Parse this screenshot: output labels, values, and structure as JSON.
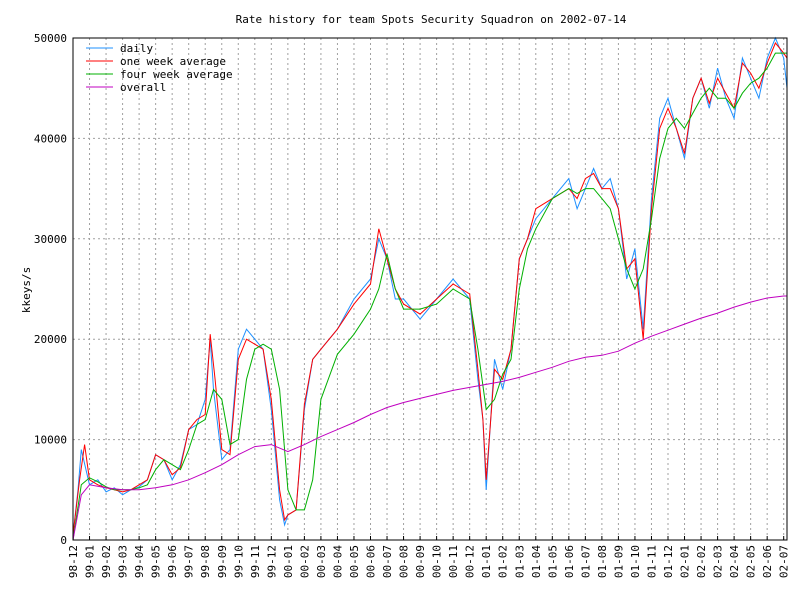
{
  "chart_data": {
    "type": "line",
    "title": "Rate history for team Spots Security Squadron on 2002-07-14",
    "xlabel": "",
    "ylabel": "kkeys/s",
    "ylim": [
      0,
      50000
    ],
    "xlim": [
      "1998-12",
      "2002-07"
    ],
    "yticks": [
      0,
      10000,
      20000,
      30000,
      40000,
      50000
    ],
    "xticks": [
      "98-12",
      "99-01",
      "99-02",
      "99-03",
      "99-04",
      "99-05",
      "99-06",
      "99-07",
      "99-08",
      "99-09",
      "99-10",
      "99-11",
      "99-12",
      "00-01",
      "00-02",
      "00-03",
      "00-04",
      "00-05",
      "00-06",
      "00-07",
      "00-08",
      "00-09",
      "00-10",
      "00-11",
      "00-12",
      "01-01",
      "01-02",
      "01-03",
      "01-04",
      "01-05",
      "01-06",
      "01-07",
      "01-08",
      "01-09",
      "01-10",
      "01-11",
      "01-12",
      "02-01",
      "02-02",
      "02-03",
      "02-04",
      "02-05",
      "02-06",
      "02-07"
    ],
    "grid": true,
    "legend_position": "top-left",
    "series": [
      {
        "name": "daily",
        "color": "#1e90ff",
        "month_index": [
          0,
          0.3,
          0.5,
          1,
          1.5,
          2,
          2.5,
          3,
          3.5,
          4,
          4.5,
          5,
          5.5,
          6,
          6.5,
          7,
          7.5,
          8,
          8.3,
          8.5,
          9,
          9.5,
          10,
          10.5,
          11,
          11.5,
          12,
          12.5,
          12.8,
          13,
          13.5,
          14,
          14.5,
          15,
          16,
          17,
          18,
          18.5,
          19,
          19.5,
          20,
          21,
          22,
          23,
          24,
          24.5,
          24.8,
          25,
          25.5,
          26,
          26.5,
          27,
          27.5,
          28,
          29,
          30,
          30.5,
          31,
          31.5,
          32,
          32.5,
          33,
          33.5,
          34,
          34.5,
          35,
          35.5,
          36,
          36.5,
          37,
          37.5,
          38,
          38.5,
          39,
          39.5,
          40,
          40.5,
          41,
          41.5,
          42,
          42.5,
          43,
          43.2
        ],
        "values": [
          500,
          5000,
          9000,
          5500,
          6000,
          4800,
          5200,
          4500,
          5000,
          5300,
          6000,
          8500,
          8000,
          6000,
          7500,
          11000,
          11500,
          14000,
          20000,
          15000,
          8000,
          9000,
          19000,
          21000,
          20000,
          19000,
          13000,
          4000,
          1500,
          2500,
          3000,
          13000,
          18000,
          19000,
          21000,
          24000,
          26000,
          30000,
          28000,
          24000,
          24000,
          22000,
          24000,
          26000,
          24000,
          16000,
          12000,
          5000,
          18000,
          15000,
          19000,
          28000,
          30000,
          32000,
          34000,
          36000,
          33000,
          35000,
          37000,
          35000,
          36000,
          33000,
          26000,
          29000,
          21000,
          34000,
          42000,
          44000,
          41000,
          38000,
          44000,
          46000,
          43000,
          47000,
          44000,
          42000,
          48000,
          46000,
          44000,
          48000,
          50000,
          48000,
          45000
        ]
      },
      {
        "name": "one week average",
        "color": "#ff0000",
        "month_index": [
          0,
          0.4,
          0.7,
          1,
          1.5,
          2,
          2.5,
          3,
          3.5,
          4,
          4.5,
          5,
          5.5,
          6,
          6.5,
          7,
          7.5,
          8,
          8.3,
          8.6,
          9,
          9.5,
          10,
          10.5,
          11,
          11.5,
          12,
          12.5,
          12.8,
          13,
          13.5,
          14,
          14.5,
          15,
          16,
          17,
          18,
          18.5,
          19,
          19.5,
          20,
          21,
          22,
          23,
          24,
          24.5,
          24.8,
          25,
          25.5,
          26,
          26.5,
          27,
          27.5,
          28,
          29,
          30,
          30.5,
          31,
          31.5,
          32,
          32.5,
          33,
          33.5,
          34,
          34.5,
          35,
          35.5,
          36,
          36.5,
          37,
          37.5,
          38,
          38.5,
          39,
          39.5,
          40,
          40.5,
          41,
          41.5,
          42,
          42.5,
          43,
          43.2
        ],
        "values": [
          500,
          6000,
          9500,
          6000,
          5500,
          5200,
          5000,
          4800,
          5000,
          5500,
          6000,
          8500,
          8000,
          6500,
          7200,
          11000,
          12000,
          12500,
          20500,
          16000,
          9000,
          8500,
          18000,
          20000,
          19500,
          19000,
          14000,
          5000,
          2000,
          2500,
          3000,
          13500,
          18000,
          19000,
          21000,
          23500,
          25500,
          31000,
          28000,
          25000,
          23500,
          22500,
          24000,
          25500,
          24500,
          17000,
          12000,
          6000,
          17000,
          16000,
          19000,
          28000,
          30000,
          33000,
          34000,
          35000,
          34000,
          36000,
          36500,
          35000,
          35000,
          33000,
          27000,
          28000,
          20000,
          33000,
          41000,
          43000,
          41000,
          38500,
          44000,
          46000,
          43500,
          46000,
          44500,
          43000,
          47500,
          46500,
          45000,
          47500,
          49500,
          48500,
          48000
        ]
      },
      {
        "name": "four week average",
        "color": "#00b000",
        "month_index": [
          0,
          0.5,
          1,
          1.5,
          2,
          2.5,
          3,
          3.5,
          4,
          4.5,
          5,
          5.5,
          6,
          6.5,
          7,
          7.5,
          8,
          8.5,
          9,
          9.5,
          10,
          10.5,
          11,
          11.5,
          12,
          12.5,
          13,
          13.5,
          14,
          14.5,
          15,
          16,
          17,
          18,
          18.5,
          19,
          19.5,
          20,
          21,
          22,
          23,
          24,
          24.5,
          25,
          25.5,
          26,
          26.5,
          27,
          27.5,
          28,
          29,
          30,
          30.5,
          31,
          31.5,
          32,
          32.5,
          33,
          33.5,
          34,
          34.5,
          35,
          35.5,
          36,
          36.5,
          37,
          37.5,
          38,
          38.5,
          39,
          39.5,
          40,
          40.5,
          41,
          41.5,
          42,
          42.5,
          43,
          43.2
        ],
        "values": [
          0,
          5500,
          6200,
          5800,
          5300,
          5000,
          5000,
          5000,
          5200,
          5500,
          7000,
          8000,
          7500,
          7000,
          9000,
          11500,
          12000,
          15000,
          14000,
          9500,
          10000,
          16000,
          19000,
          19500,
          19000,
          15000,
          5000,
          3000,
          3000,
          6000,
          14000,
          18500,
          20500,
          23000,
          25000,
          28500,
          25000,
          23000,
          23000,
          23500,
          25000,
          24000,
          19000,
          13000,
          14000,
          16500,
          18000,
          25000,
          29000,
          31000,
          34000,
          35000,
          34500,
          35000,
          35000,
          34000,
          33000,
          30000,
          27000,
          25000,
          27000,
          32000,
          38000,
          41000,
          42000,
          41000,
          42500,
          44000,
          45000,
          44000,
          44000,
          43000,
          44500,
          45500,
          46000,
          47000,
          48500,
          48500,
          48500
        ]
      },
      {
        "name": "overall",
        "color": "#c000c0",
        "month_index": [
          0,
          0.5,
          1,
          2,
          3,
          4,
          5,
          6,
          7,
          8,
          9,
          10,
          11,
          12,
          13,
          14,
          15,
          16,
          17,
          18,
          19,
          20,
          21,
          22,
          23,
          24,
          25,
          26,
          27,
          28,
          29,
          30,
          31,
          32,
          33,
          34,
          35,
          36,
          37,
          38,
          39,
          40,
          41,
          42,
          43,
          43.2
        ],
        "values": [
          0,
          4500,
          5500,
          5200,
          5000,
          5000,
          5200,
          5500,
          6000,
          6700,
          7500,
          8500,
          9300,
          9500,
          8800,
          9500,
          10300,
          11000,
          11700,
          12500,
          13200,
          13700,
          14100,
          14500,
          14900,
          15200,
          15500,
          15800,
          16200,
          16700,
          17200,
          17800,
          18200,
          18400,
          18800,
          19600,
          20300,
          20900,
          21500,
          22100,
          22600,
          23200,
          23700,
          24100,
          24300,
          24300
        ]
      }
    ]
  }
}
